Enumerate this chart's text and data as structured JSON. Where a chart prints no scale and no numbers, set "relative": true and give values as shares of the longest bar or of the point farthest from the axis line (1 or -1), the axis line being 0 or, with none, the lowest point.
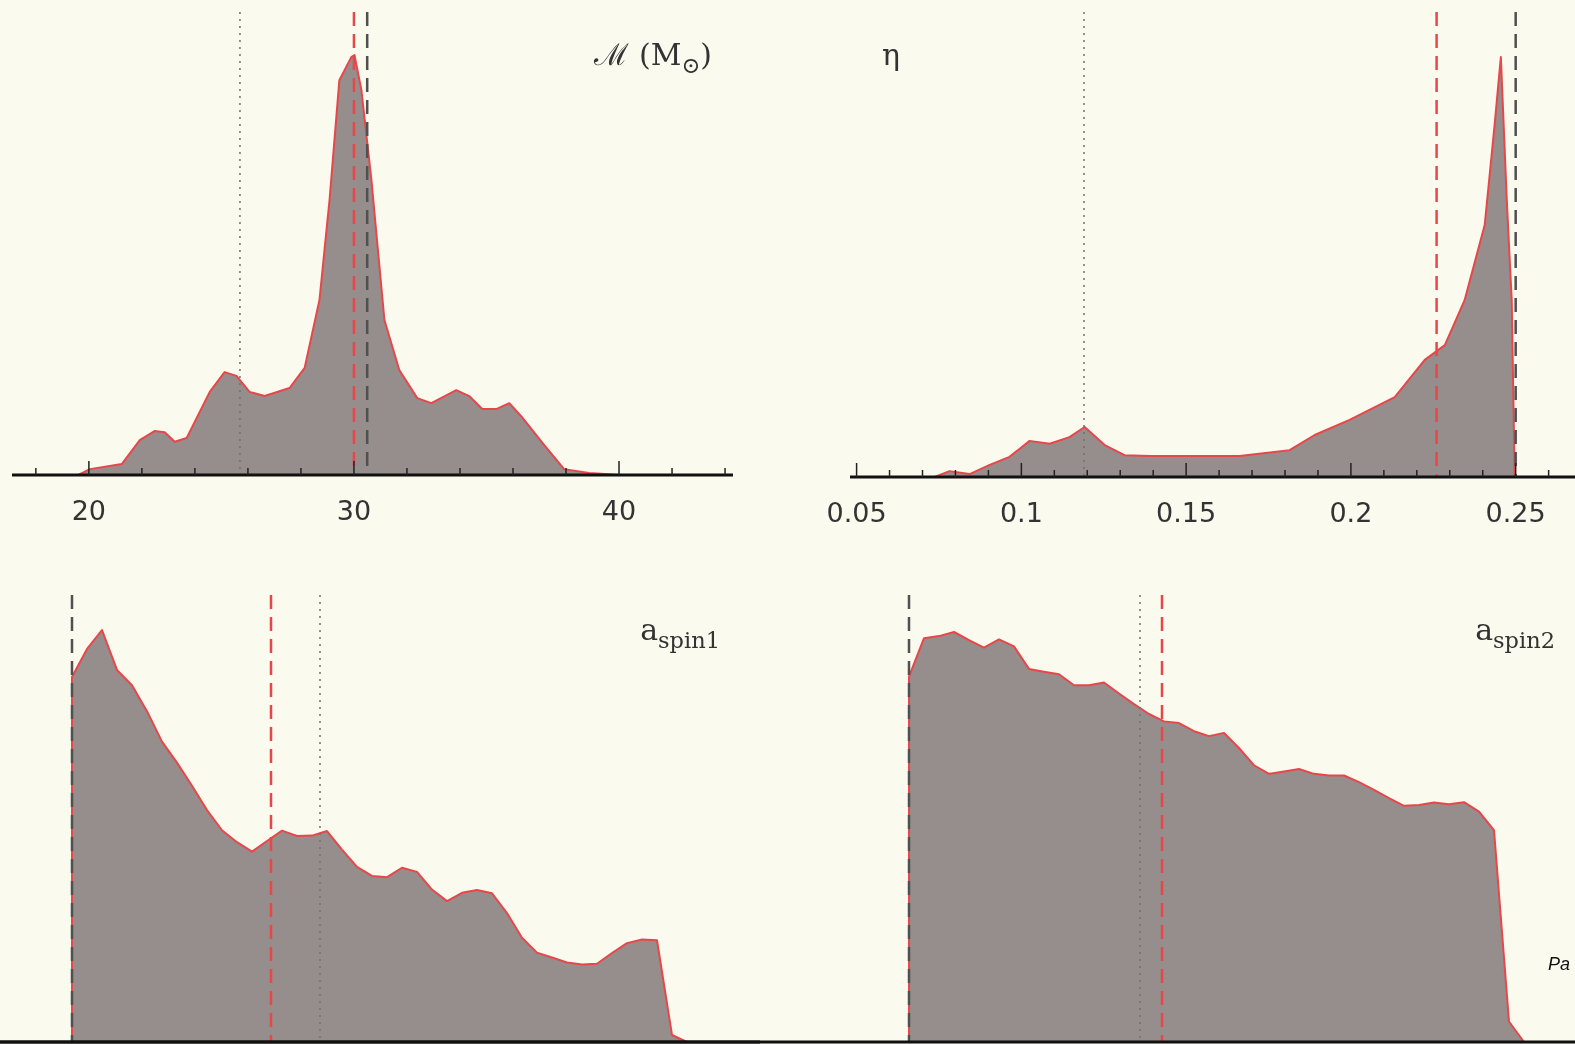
{
  "chart_data": [
    {
      "type": "area",
      "title": "ℳ (M$_{⊙}$)",
      "relative": true,
      "tick_labels": "x",
      "x": [
        19.6,
        20.04,
        21.24,
        21.92,
        22.49,
        22.86,
        23.24,
        23.69,
        24.56,
        25.12,
        25.57,
        26.06,
        26.63,
        27.57,
        28.14,
        28.7,
        29.08,
        29.45,
        29.9,
        30.02,
        30.28,
        30.66,
        31.15,
        31.71,
        32.39,
        32.92,
        33.86,
        34.35,
        34.84,
        35.37,
        35.86,
        36.31,
        37.18,
        37.93,
        38.87,
        39.62,
        40.0
      ],
      "series": [
        {
          "color": "#968d8d",
          "values": [
            0,
            0.014,
            0.026,
            0.083,
            0.105,
            0.102,
            0.079,
            0.088,
            0.198,
            0.245,
            0.236,
            0.198,
            0.188,
            0.207,
            0.255,
            0.417,
            0.655,
            0.94,
            0.995,
            1.0,
            0.917,
            0.702,
            0.369,
            0.25,
            0.183,
            0.171,
            0.202,
            0.188,
            0.157,
            0.157,
            0.171,
            0.14,
            0.071,
            0.014,
            0.005,
            0.002,
            0
          ]
        }
      ],
      "xlim": [
        17.1,
        44.3
      ],
      "xticks": [
        {
          "value": 18,
          "label": null
        },
        20,
        {
          "value": 22,
          "label": null
        },
        {
          "value": 24,
          "label": null
        },
        {
          "value": 26,
          "label": null
        },
        {
          "value": 28,
          "label": null
        },
        30,
        {
          "value": 32,
          "label": null
        },
        {
          "value": 34,
          "label": null
        },
        {
          "value": 36,
          "label": null
        },
        {
          "value": 38,
          "label": null
        },
        40,
        {
          "value": 42,
          "label": null
        },
        {
          "value": 44,
          "label": null
        }
      ],
      "ref_lines": [
        {
          "axis": "x",
          "value": 25.7,
          "color": "#707070",
          "line_style": "dotted"
        },
        {
          "axis": "x",
          "value": 30.0,
          "color": "#e8474a",
          "line_style": "dashed"
        },
        {
          "axis": "x",
          "value": 30.5,
          "color": "#505050",
          "line_style": "dashed"
        }
      ]
    },
    {
      "type": "area",
      "title": "η",
      "relative": true,
      "tick_labels": "x",
      "x": [
        0.0737,
        0.0782,
        0.0843,
        0.0904,
        0.0964,
        0.1025,
        0.1086,
        0.1146,
        0.1192,
        0.1253,
        0.1313,
        0.1389,
        0.1511,
        0.1662,
        0.1814,
        0.189,
        0.1996,
        0.2133,
        0.2224,
        0.2285,
        0.2345,
        0.2406,
        0.2436,
        0.2455,
        0.2473,
        0.2488,
        0.2497
      ],
      "series": [
        {
          "color": "#968d8d",
          "values": [
            0,
            0.014,
            0.007,
            0.029,
            0.048,
            0.086,
            0.079,
            0.095,
            0.119,
            0.076,
            0.052,
            0.05,
            0.05,
            0.05,
            0.064,
            0.1,
            0.136,
            0.19,
            0.279,
            0.314,
            0.421,
            0.6,
            0.838,
            1.0,
            0.66,
            0.42,
            0
          ]
        }
      ],
      "xlim": [
        0.048,
        0.268
      ],
      "xticks": [
        0.05,
        {
          "value": 0.06,
          "label": null
        },
        {
          "value": 0.07,
          "label": null
        },
        {
          "value": 0.08,
          "label": null
        },
        {
          "value": 0.09,
          "label": null
        },
        0.1,
        {
          "value": 0.11,
          "label": null
        },
        {
          "value": 0.12,
          "label": null
        },
        {
          "value": 0.13,
          "label": null
        },
        {
          "value": 0.14,
          "label": null
        },
        0.15,
        {
          "value": 0.16,
          "label": null
        },
        {
          "value": 0.17,
          "label": null
        },
        {
          "value": 0.18,
          "label": null
        },
        {
          "value": 0.19,
          "label": null
        },
        0.2,
        {
          "value": 0.21,
          "label": null
        },
        {
          "value": 0.22,
          "label": null
        },
        {
          "value": 0.23,
          "label": null
        },
        {
          "value": 0.24,
          "label": null
        },
        0.25,
        {
          "value": 0.26,
          "label": null
        }
      ],
      "ref_lines": [
        {
          "axis": "x",
          "value": 0.119,
          "color": "#707070",
          "line_style": "dotted"
        },
        {
          "axis": "x",
          "value": 0.226,
          "color": "#e8474a",
          "line_style": "dashed"
        },
        {
          "axis": "x",
          "value": 0.25,
          "color": "#505050",
          "line_style": "dashed"
        }
      ]
    },
    {
      "type": "area",
      "title": "a$_{spin1}$",
      "relative": true,
      "tick_labels": false,
      "categories": [
        null,
        null,
        null,
        null,
        null,
        null,
        null,
        null,
        null,
        null,
        null,
        null,
        null,
        null,
        null,
        null,
        null,
        null,
        null,
        null,
        null,
        null,
        null,
        null,
        null,
        null,
        null,
        null,
        null,
        null,
        null,
        null,
        null,
        null,
        null,
        null,
        null,
        null,
        null,
        null,
        null,
        null
      ],
      "series": [
        {
          "color": "#968d8d",
          "values": [
            0.886,
            0.954,
            1.0,
            0.903,
            0.866,
            0.803,
            0.729,
            0.678,
            0.622,
            0.563,
            0.514,
            0.485,
            0.462,
            0.488,
            0.513,
            0.5,
            0.501,
            0.512,
            0.467,
            0.425,
            0.403,
            0.4,
            0.423,
            0.413,
            0.37,
            0.342,
            0.362,
            0.369,
            0.361,
            0.313,
            0.253,
            0.217,
            0.205,
            0.193,
            0.188,
            0.19,
            0.216,
            0.24,
            0.249,
            0.247,
            0.017,
            0
          ]
        }
      ]
    },
    {
      "type": "area",
      "title": "a$_{spin2}$",
      "relative": true,
      "tick_labels": false,
      "categories": [
        null,
        null,
        null,
        null,
        null,
        null,
        null,
        null,
        null,
        null,
        null,
        null,
        null,
        null,
        null,
        null,
        null,
        null,
        null,
        null,
        null,
        null,
        null,
        null,
        null,
        null,
        null,
        null,
        null,
        null,
        null,
        null,
        null,
        null,
        null,
        null,
        null,
        null,
        null,
        null,
        null,
        null
      ],
      "series": [
        {
          "color": "#968d8d",
          "values": [
            0.891,
            0.985,
            0.99,
            1.0,
            0.98,
            0.962,
            0.982,
            0.965,
            0.91,
            0.903,
            0.897,
            0.87,
            0.87,
            0.877,
            0.85,
            0.824,
            0.8,
            0.782,
            0.778,
            0.758,
            0.746,
            0.754,
            0.717,
            0.675,
            0.654,
            0.66,
            0.666,
            0.654,
            0.65,
            0.65,
            0.634,
            0.615,
            0.595,
            0.576,
            0.578,
            0.584,
            0.58,
            0.585,
            0.562,
            0.517,
            0.05,
            0
          ]
        }
      ],
      "annotations": [
        "Pa"
      ]
    }
  ]
}
